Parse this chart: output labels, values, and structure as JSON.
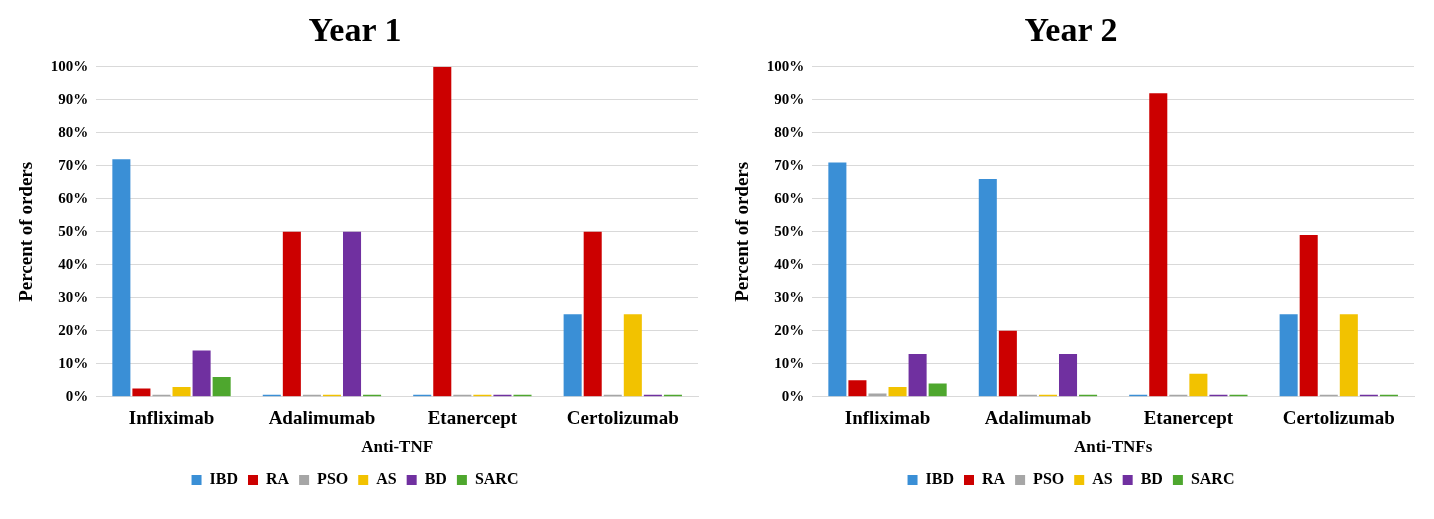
{
  "chart_data": [
    {
      "type": "bar",
      "title": "Year 1",
      "xlabel": "Anti-TNF",
      "ylabel": "Percent of orders",
      "categories": [
        "Infliximab",
        "Adalimumab",
        "Etanercept",
        "Certolizumab"
      ],
      "series": [
        {
          "name": "IBD",
          "color": "#3a8fd6",
          "values": [
            72,
            0,
            0,
            25
          ]
        },
        {
          "name": "RA",
          "color": "#cc0000",
          "values": [
            2.5,
            50,
            100,
            50
          ]
        },
        {
          "name": "PSO",
          "color": "#a6a6a6",
          "values": [
            0,
            0,
            0,
            0
          ]
        },
        {
          "name": "AS",
          "color": "#f2c200",
          "values": [
            3,
            0,
            0,
            25
          ]
        },
        {
          "name": "BD",
          "color": "#7030a0",
          "values": [
            14,
            50,
            0,
            0
          ]
        },
        {
          "name": "SARC",
          "color": "#4ea72e",
          "values": [
            6,
            0,
            0,
            0
          ]
        }
      ],
      "ylim": [
        0,
        100
      ],
      "yticks": [
        {
          "value": 0,
          "label": "0%"
        },
        {
          "value": 10,
          "label": "10%"
        },
        {
          "value": 20,
          "label": "20%"
        },
        {
          "value": 30,
          "label": "30%"
        },
        {
          "value": 40,
          "label": "40%"
        },
        {
          "value": 50,
          "label": "50%"
        },
        {
          "value": 60,
          "label": "60%"
        },
        {
          "value": 70,
          "label": "70%"
        },
        {
          "value": 80,
          "label": "80%"
        },
        {
          "value": 90,
          "label": "90%"
        },
        {
          "value": 100,
          "label": "100%"
        }
      ],
      "grid": "y",
      "legend": "bottom"
    },
    {
      "type": "bar",
      "title": "Year 2",
      "xlabel": "Anti-TNFs",
      "ylabel": "Percent of orders",
      "categories": [
        "Infliximab",
        "Adalimumab",
        "Etanercept",
        "Certolizumab"
      ],
      "series": [
        {
          "name": "IBD",
          "color": "#3a8fd6",
          "values": [
            71,
            66,
            0,
            25
          ]
        },
        {
          "name": "RA",
          "color": "#cc0000",
          "values": [
            5,
            20,
            92,
            49
          ]
        },
        {
          "name": "PSO",
          "color": "#a6a6a6",
          "values": [
            1,
            0,
            0,
            0
          ]
        },
        {
          "name": "AS",
          "color": "#f2c200",
          "values": [
            3,
            0,
            7,
            25
          ]
        },
        {
          "name": "BD",
          "color": "#7030a0",
          "values": [
            13,
            13,
            0,
            0
          ]
        },
        {
          "name": "SARC",
          "color": "#4ea72e",
          "values": [
            4,
            0,
            0,
            0
          ]
        }
      ],
      "ylim": [
        0,
        100
      ],
      "yticks": [
        {
          "value": 0,
          "label": "0%"
        },
        {
          "value": 10,
          "label": "10%"
        },
        {
          "value": 20,
          "label": "20%"
        },
        {
          "value": 30,
          "label": "30%"
        },
        {
          "value": 40,
          "label": "40%"
        },
        {
          "value": 50,
          "label": "50%"
        },
        {
          "value": 60,
          "label": "60%"
        },
        {
          "value": 70,
          "label": "70%"
        },
        {
          "value": 80,
          "label": "80%"
        },
        {
          "value": 90,
          "label": "90%"
        },
        {
          "value": 100,
          "label": "100%"
        }
      ],
      "grid": "y",
      "legend": "bottom"
    }
  ]
}
